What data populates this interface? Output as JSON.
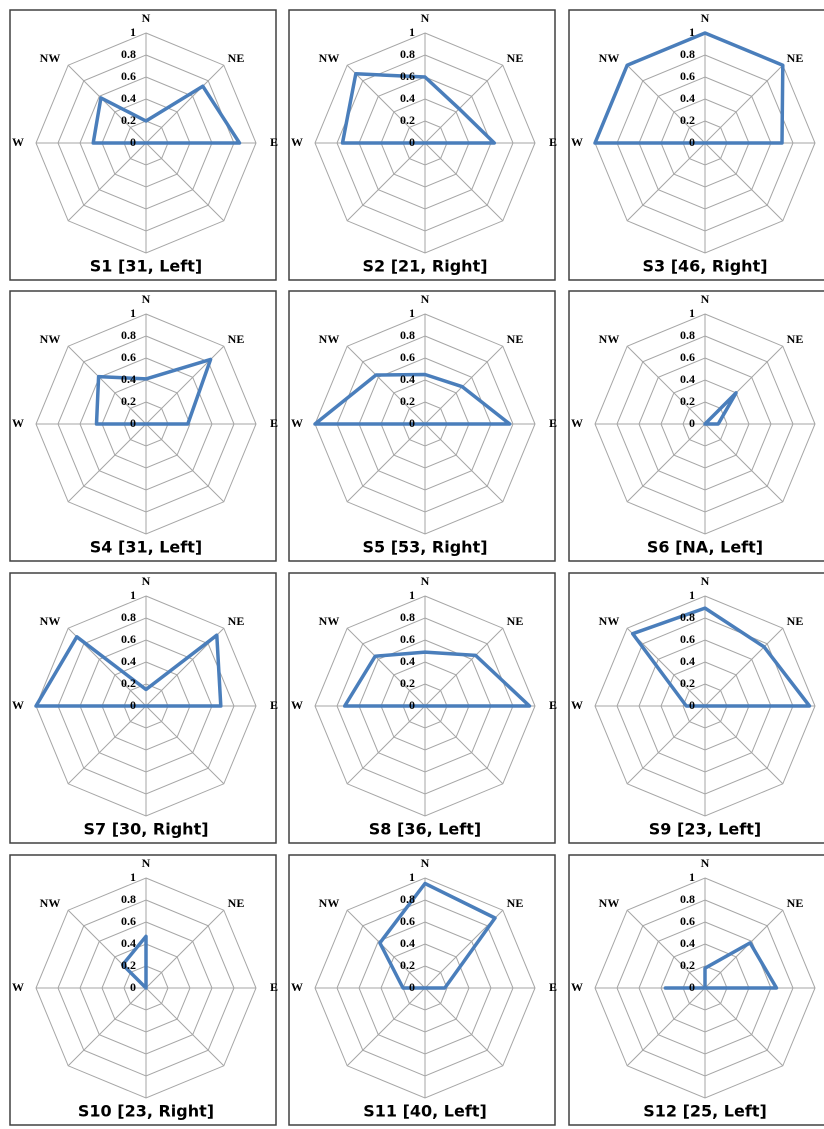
{
  "chart_data": [
    {
      "type": "radar",
      "title": "S1 [31, Left]",
      "categories": [
        "N",
        "NE",
        "E",
        null,
        null,
        null,
        "W",
        "NW"
      ],
      "values": [
        0.2,
        0.73,
        0.85,
        0,
        0,
        0,
        0.48,
        0.58
      ],
      "rlim": [
        0,
        1
      ],
      "rticks": [
        0,
        0.2,
        0.4,
        0.6,
        0.8,
        1
      ],
      "color": "#4a7ebb"
    },
    {
      "type": "radar",
      "title": "S2 [21, Right]",
      "categories": [
        "N",
        "NE",
        "E",
        null,
        null,
        null,
        "W",
        "NW"
      ],
      "values": [
        0.6,
        0.44,
        0.63,
        0,
        0,
        0,
        0.75,
        0.89
      ],
      "rlim": [
        0,
        1
      ],
      "rticks": [
        0,
        0.2,
        0.4,
        0.6,
        0.8,
        1
      ],
      "color": "#4a7ebb"
    },
    {
      "type": "radar",
      "title": "S3 [46, Right]",
      "categories": [
        "N",
        "NE",
        "E",
        null,
        null,
        null,
        "W",
        "NW"
      ],
      "values": [
        1,
        1,
        0.7,
        0,
        0,
        0,
        1,
        1
      ],
      "rlim": [
        0,
        1
      ],
      "rticks": [
        0,
        0.2,
        0.4,
        0.6,
        0.8,
        1
      ],
      "color": "#4a7ebb"
    },
    {
      "type": "radar",
      "title": "S4 [31, Left]",
      "categories": [
        "N",
        "NE",
        "E",
        null,
        null,
        null,
        "W",
        "NW"
      ],
      "values": [
        0.41,
        0.83,
        0.38,
        0,
        0,
        0,
        0.45,
        0.61
      ],
      "rlim": [
        0,
        1
      ],
      "rticks": [
        0,
        0.2,
        0.4,
        0.6,
        0.8,
        1
      ],
      "color": "#4a7ebb"
    },
    {
      "type": "radar",
      "title": "S5 [53, Right]",
      "categories": [
        "N",
        "NE",
        "E",
        null,
        null,
        null,
        "W",
        "NW"
      ],
      "values": [
        0.45,
        0.48,
        0.77,
        0,
        0,
        0,
        1,
        0.63
      ],
      "rlim": [
        0,
        1
      ],
      "rticks": [
        0,
        0.2,
        0.4,
        0.6,
        0.8,
        1
      ],
      "color": "#4a7ebb"
    },
    {
      "type": "radar",
      "title": "S6 [NA, Left]",
      "categories": [
        "N",
        "NE",
        "E",
        null,
        null,
        null,
        "W",
        "NW"
      ],
      "values": [
        0,
        0.4,
        0.12,
        0,
        0,
        0,
        0,
        0
      ],
      "rlim": [
        0,
        1
      ],
      "rticks": [
        0,
        0.2,
        0.4,
        0.6,
        0.8,
        1
      ],
      "color": "#4a7ebb"
    },
    {
      "type": "radar",
      "title": "S7 [30, Right]",
      "categories": [
        "N",
        "NE",
        "E",
        null,
        null,
        null,
        "W",
        "NW"
      ],
      "values": [
        0.15,
        0.91,
        0.68,
        0,
        0,
        0,
        1,
        0.89
      ],
      "rlim": [
        0,
        1
      ],
      "rticks": [
        0,
        0.2,
        0.4,
        0.6,
        0.8,
        1
      ],
      "color": "#4a7ebb"
    },
    {
      "type": "radar",
      "title": "S8 [36, Left]",
      "categories": [
        "N",
        "NE",
        "E",
        null,
        null,
        null,
        "W",
        "NW"
      ],
      "values": [
        0.49,
        0.65,
        0.95,
        0,
        0,
        0,
        0.73,
        0.64
      ],
      "rlim": [
        0,
        1
      ],
      "rticks": [
        0,
        0.2,
        0.4,
        0.6,
        0.8,
        1
      ],
      "color": "#4a7ebb"
    },
    {
      "type": "radar",
      "title": "S9 [23, Left]",
      "categories": [
        "N",
        "NE",
        "E",
        null,
        null,
        null,
        "W",
        "NW"
      ],
      "values": [
        0.89,
        0.76,
        0.95,
        0,
        0,
        0,
        0.17,
        0.93
      ],
      "rlim": [
        0,
        1
      ],
      "rticks": [
        0,
        0.2,
        0.4,
        0.6,
        0.8,
        1
      ],
      "color": "#4a7ebb"
    },
    {
      "type": "radar",
      "title": "S10 [23, Right]",
      "categories": [
        "N",
        "NE",
        "E",
        null,
        null,
        null,
        "W",
        "NW"
      ],
      "values": [
        0.47,
        0,
        0,
        0,
        0,
        0,
        0,
        0.3
      ],
      "rlim": [
        0,
        1
      ],
      "rticks": [
        0,
        0.2,
        0.4,
        0.6,
        0.8,
        1
      ],
      "color": "#4a7ebb"
    },
    {
      "type": "radar",
      "title": "S11 [40, Left]",
      "categories": [
        "N",
        "NE",
        "E",
        null,
        null,
        null,
        "W",
        "NW"
      ],
      "values": [
        0.95,
        0.9,
        0.18,
        0,
        0,
        0,
        0.2,
        0.58
      ],
      "rlim": [
        0,
        1
      ],
      "rticks": [
        0,
        0.2,
        0.4,
        0.6,
        0.8,
        1
      ],
      "color": "#4a7ebb"
    },
    {
      "type": "radar",
      "title": "S12 [25, Left]",
      "categories": [
        "N",
        "NE",
        "E",
        null,
        null,
        null,
        "W",
        "NW"
      ],
      "values": [
        0.18,
        0.58,
        0.65,
        0,
        0,
        0,
        0.36,
        0
      ],
      "rlim": [
        0,
        1
      ],
      "rticks": [
        0,
        0.2,
        0.4,
        0.6,
        0.8,
        1
      ],
      "color": "#4a7ebb"
    }
  ]
}
